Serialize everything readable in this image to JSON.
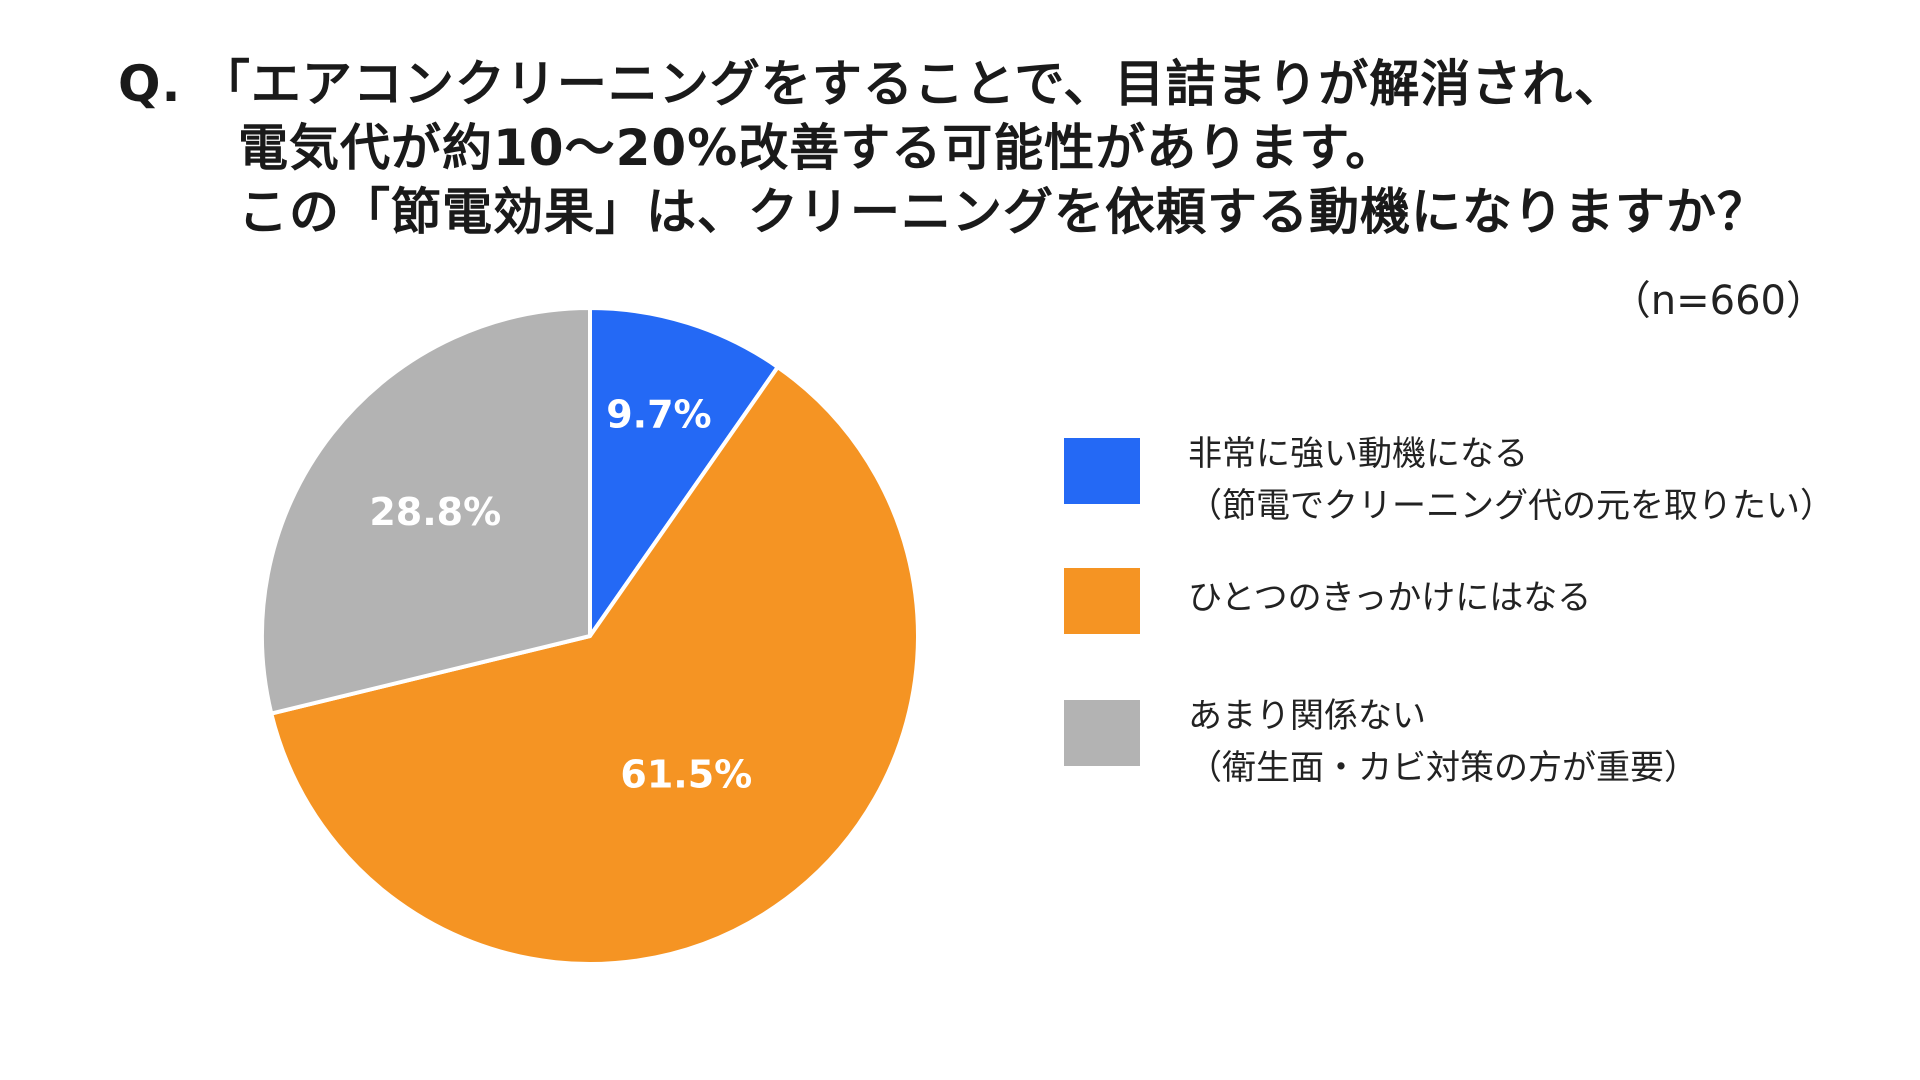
{
  "title": {
    "line1": "Q. 「エアコンクリーニングをすることで、目詰まりが解消され、",
    "line2": "電気代が約10～20%改善する可能性があります。",
    "line3": "この「節電効果」は、クリーニングを依頼する動機になりますか？"
  },
  "sample_size": "（n=660）",
  "chart_data": {
    "type": "pie",
    "start": "12 o'clock, clockwise",
    "slices": [
      {
        "label_line1": "非常に強い動機になる",
        "label_line2": "（節電でクリーニング代の元を取りたい）",
        "value": 9.7,
        "value_label": "9.7%",
        "color": "#2469F5"
      },
      {
        "label_line1": "ひとつのきっかけにはなる",
        "label_line2": "",
        "value": 61.5,
        "value_label": "61.5%",
        "color": "#F59423"
      },
      {
        "label_line1": "あまり関係ない",
        "label_line2": "（衛生面・カビ対策の方が重要）",
        "value": 28.8,
        "value_label": "28.8%",
        "color": "#B3B3B3"
      }
    ],
    "legend_placement": "right"
  }
}
